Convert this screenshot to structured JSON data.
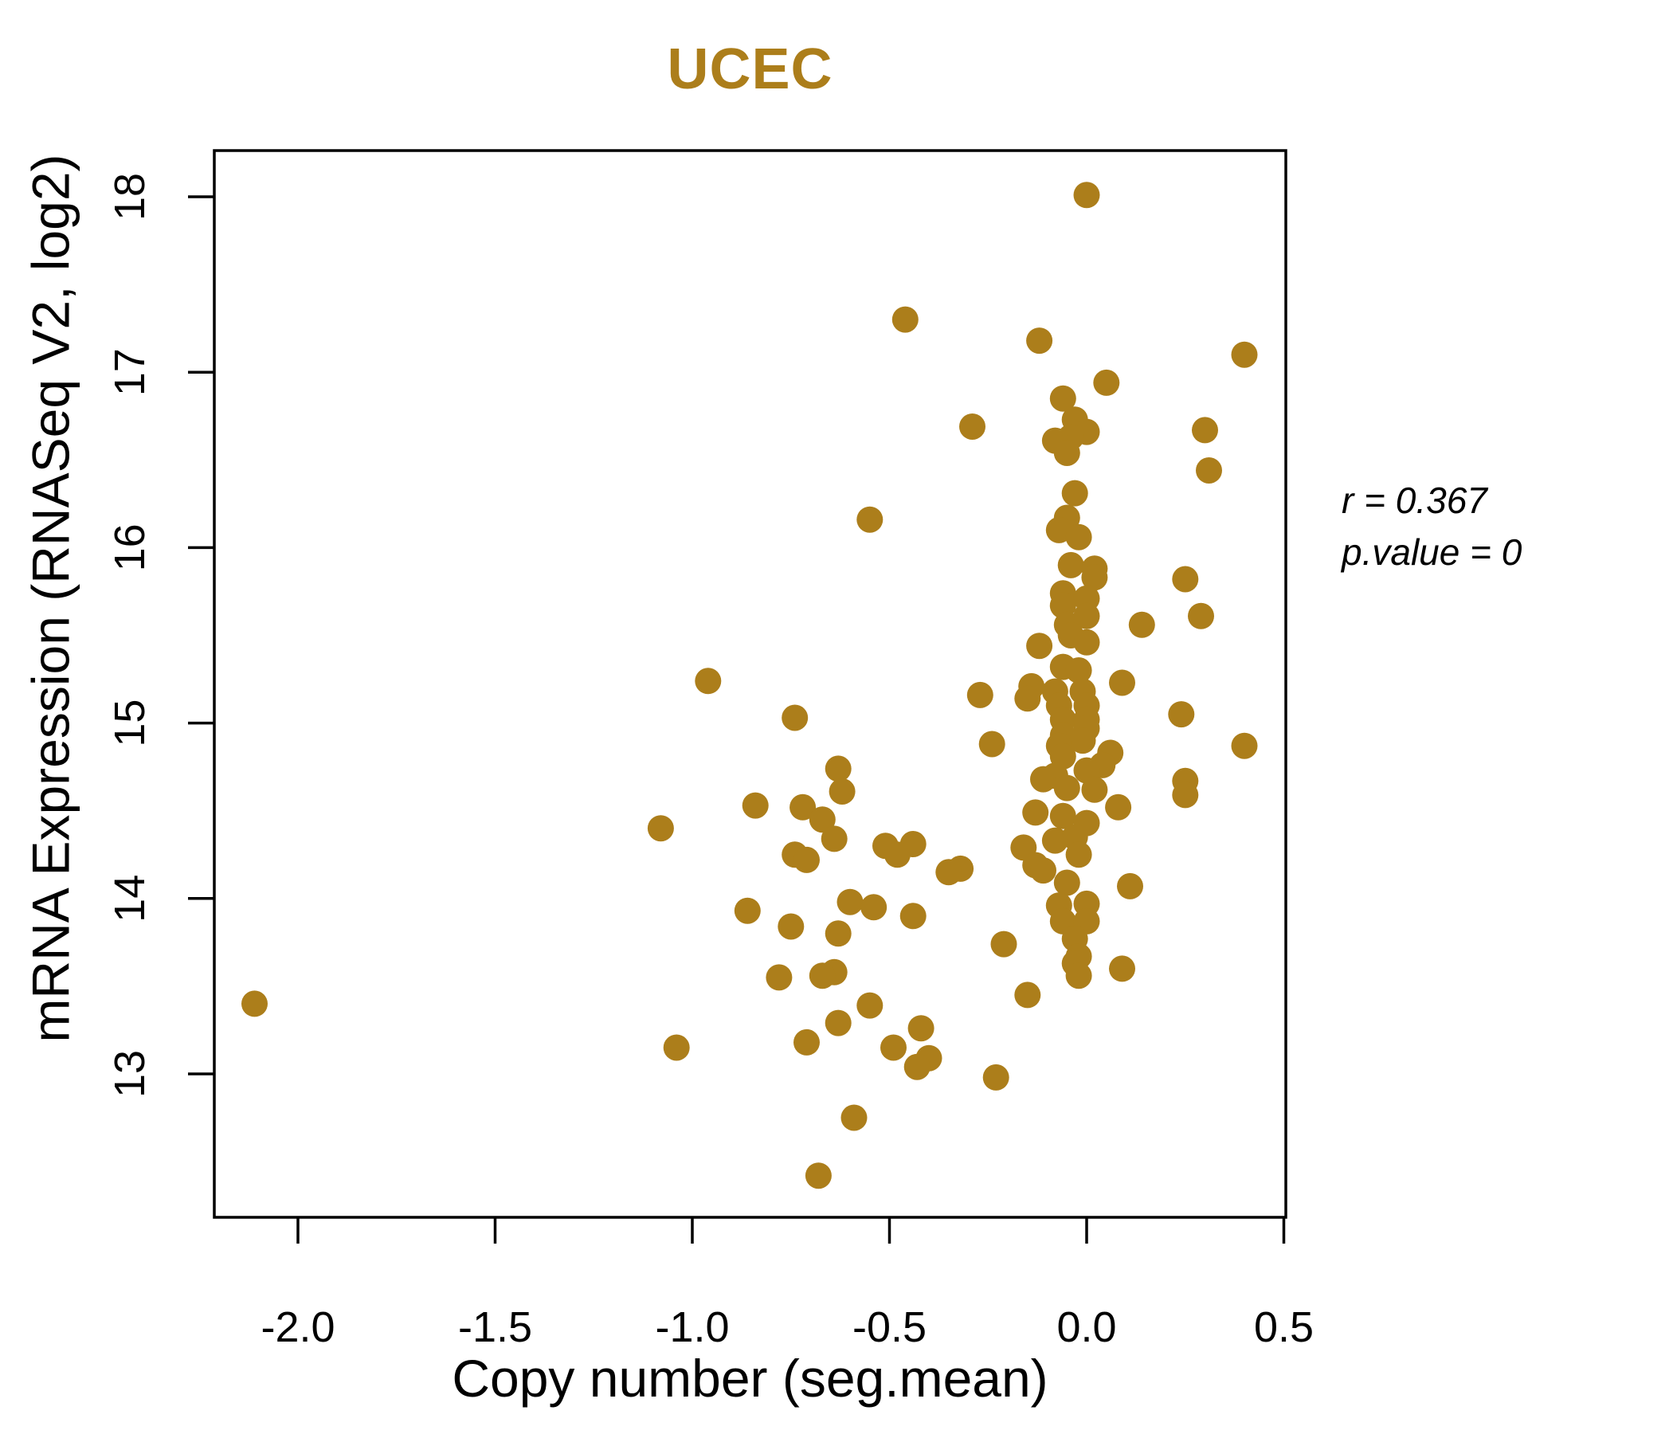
{
  "title": "UCEC",
  "accent_color": "#AC7E1B",
  "axis_color": "#000000",
  "xlabel": "Copy number (seg.mean)",
  "ylabel": "mRNA Expression (RNASeq V2, log2)",
  "annotation": {
    "line1": "r = 0.367",
    "line2": "p.value = 0"
  },
  "chart_data": {
    "type": "scatter",
    "title": "UCEC",
    "xlabel": "Copy number (seg.mean)",
    "ylabel": "mRNA Expression (RNASeq V2, log2)",
    "x_ticks": [
      -2.0,
      -1.5,
      -1.0,
      -0.5,
      0.0,
      0.5
    ],
    "x_tick_labels": [
      "-2.0",
      "-1.5",
      "-1.0",
      "-0.5",
      "0.0",
      "0.5"
    ],
    "y_ticks": [
      13,
      14,
      15,
      16,
      17,
      18
    ],
    "y_tick_labels": [
      "13",
      "14",
      "15",
      "16",
      "17",
      "18"
    ],
    "xlim": [
      -2.21,
      0.51
    ],
    "ylim": [
      12.17,
      18.26
    ],
    "grid": false,
    "legend": null,
    "marker": "filled-circle",
    "marker_color": "#AC7E1B",
    "correlation_r": 0.367,
    "p_value": 0,
    "points": [
      [
        0.0,
        18.01
      ],
      [
        -0.46,
        17.3
      ],
      [
        -0.12,
        17.18
      ],
      [
        0.4,
        17.1
      ],
      [
        0.05,
        16.94
      ],
      [
        -0.06,
        16.85
      ],
      [
        -0.03,
        16.73
      ],
      [
        -0.29,
        16.69
      ],
      [
        0.3,
        16.67
      ],
      [
        0.0,
        16.66
      ],
      [
        -0.04,
        16.63
      ],
      [
        -0.08,
        16.61
      ],
      [
        -0.05,
        16.54
      ],
      [
        0.31,
        16.44
      ],
      [
        -0.03,
        16.31
      ],
      [
        -0.05,
        16.17
      ],
      [
        -0.55,
        16.16
      ],
      [
        -0.07,
        16.1
      ],
      [
        -0.02,
        16.06
      ],
      [
        -0.04,
        15.9
      ],
      [
        0.02,
        15.88
      ],
      [
        0.02,
        15.83
      ],
      [
        0.25,
        15.82
      ],
      [
        -0.06,
        15.74
      ],
      [
        0.0,
        15.71
      ],
      [
        -0.06,
        15.67
      ],
      [
        0.0,
        15.61
      ],
      [
        0.29,
        15.61
      ],
      [
        -0.05,
        15.56
      ],
      [
        0.14,
        15.56
      ],
      [
        -0.04,
        15.5
      ],
      [
        0.0,
        15.46
      ],
      [
        -0.12,
        15.44
      ],
      [
        -0.06,
        15.32
      ],
      [
        -0.02,
        15.3
      ],
      [
        -0.96,
        15.24
      ],
      [
        0.09,
        15.23
      ],
      [
        -0.14,
        15.21
      ],
      [
        -0.08,
        15.18
      ],
      [
        -0.01,
        15.18
      ],
      [
        -0.27,
        15.16
      ],
      [
        -0.15,
        15.14
      ],
      [
        -0.07,
        15.1
      ],
      [
        0.0,
        15.1
      ],
      [
        0.24,
        15.05
      ],
      [
        -0.74,
        15.03
      ],
      [
        -0.06,
        15.02
      ],
      [
        0.0,
        15.02
      ],
      [
        0.0,
        14.97
      ],
      [
        -0.06,
        14.93
      ],
      [
        -0.01,
        14.9
      ],
      [
        -0.24,
        14.88
      ],
      [
        0.4,
        14.87
      ],
      [
        -0.07,
        14.87
      ],
      [
        0.06,
        14.83
      ],
      [
        -0.06,
        14.81
      ],
      [
        0.04,
        14.76
      ],
      [
        -0.63,
        14.74
      ],
      [
        0.0,
        14.73
      ],
      [
        -0.08,
        14.7
      ],
      [
        -0.11,
        14.68
      ],
      [
        0.25,
        14.67
      ],
      [
        -0.05,
        14.63
      ],
      [
        0.02,
        14.62
      ],
      [
        -0.62,
        14.61
      ],
      [
        0.25,
        14.59
      ],
      [
        -0.84,
        14.53
      ],
      [
        -0.72,
        14.52
      ],
      [
        0.08,
        14.52
      ],
      [
        -0.13,
        14.49
      ],
      [
        -0.06,
        14.47
      ],
      [
        -0.67,
        14.45
      ],
      [
        0.0,
        14.43
      ],
      [
        -1.08,
        14.4
      ],
      [
        -0.03,
        14.35
      ],
      [
        -0.64,
        14.34
      ],
      [
        -0.08,
        14.33
      ],
      [
        -0.44,
        14.31
      ],
      [
        -0.51,
        14.3
      ],
      [
        -0.16,
        14.29
      ],
      [
        -0.74,
        14.25
      ],
      [
        -0.02,
        14.25
      ],
      [
        -0.48,
        14.25
      ],
      [
        -0.71,
        14.22
      ],
      [
        -0.13,
        14.19
      ],
      [
        -0.32,
        14.17
      ],
      [
        -0.11,
        14.16
      ],
      [
        -0.35,
        14.15
      ],
      [
        -0.05,
        14.09
      ],
      [
        0.11,
        14.07
      ],
      [
        -0.6,
        13.98
      ],
      [
        0.0,
        13.97
      ],
      [
        -0.07,
        13.96
      ],
      [
        -0.54,
        13.95
      ],
      [
        -0.86,
        13.93
      ],
      [
        -0.44,
        13.9
      ],
      [
        -0.06,
        13.87
      ],
      [
        0.0,
        13.87
      ],
      [
        -0.75,
        13.84
      ],
      [
        -0.63,
        13.8
      ],
      [
        -0.03,
        13.77
      ],
      [
        -0.21,
        13.74
      ],
      [
        -0.02,
        13.67
      ],
      [
        -0.03,
        13.63
      ],
      [
        0.09,
        13.6
      ],
      [
        -0.64,
        13.58
      ],
      [
        -0.67,
        13.56
      ],
      [
        -0.02,
        13.56
      ],
      [
        -0.78,
        13.55
      ],
      [
        -0.15,
        13.45
      ],
      [
        -2.11,
        13.4
      ],
      [
        -0.55,
        13.39
      ],
      [
        -0.63,
        13.29
      ],
      [
        -0.42,
        13.26
      ],
      [
        -0.71,
        13.18
      ],
      [
        -1.04,
        13.15
      ],
      [
        -0.49,
        13.15
      ],
      [
        -0.4,
        13.09
      ],
      [
        -0.43,
        13.04
      ],
      [
        -0.23,
        12.98
      ],
      [
        -0.59,
        12.75
      ],
      [
        -0.68,
        12.42
      ]
    ]
  }
}
